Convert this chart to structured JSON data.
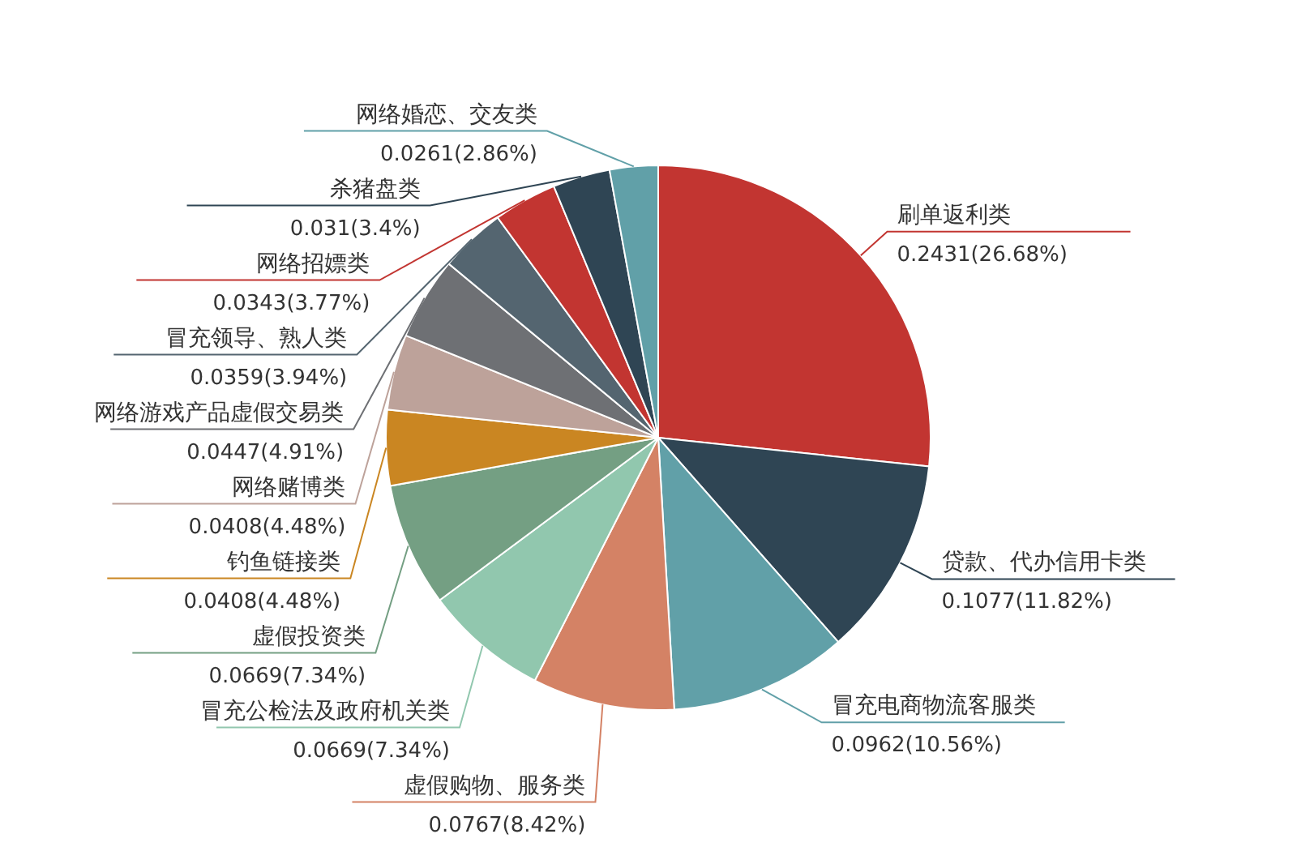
{
  "chart_data": {
    "type": "pie",
    "categories": [
      "刷单返利类",
      "贷款、代办信用卡类",
      "冒充电商物流客服类",
      "虚假购物、服务类",
      "冒充公检法及政府机关类",
      "虚假投资类",
      "钓鱼链接类",
      "网络赌博类",
      "网络游戏产品虚假交易类",
      "冒充领导、熟人类",
      "网络招嫖类",
      "杀猪盘类",
      "网络婚恋、交友类"
    ],
    "values": [
      0.2431,
      0.1077,
      0.0962,
      0.0767,
      0.0669,
      0.0669,
      0.0408,
      0.0408,
      0.0447,
      0.0359,
      0.0343,
      0.031,
      0.0261
    ],
    "value_labels": [
      "0.2431(26.68%)",
      "0.1077(11.82%)",
      "0.0962(10.56%)",
      "0.0767(8.42%)",
      "0.0669(7.34%)",
      "0.0669(7.34%)",
      "0.0408(4.48%)",
      "0.0408(4.48%)",
      "0.0447(4.91%)",
      "0.0359(3.94%)",
      "0.0343(3.77%)",
      "0.031(3.4%)",
      "0.0261(2.86%)"
    ],
    "colors": [
      "#c23531",
      "#2f4554",
      "#61a0a8",
      "#d48265",
      "#91c7ae",
      "#749f83",
      "#ca8622",
      "#bda29a",
      "#6e7074",
      "#546570",
      "#c23531",
      "#2f4554",
      "#61a0a8"
    ]
  }
}
